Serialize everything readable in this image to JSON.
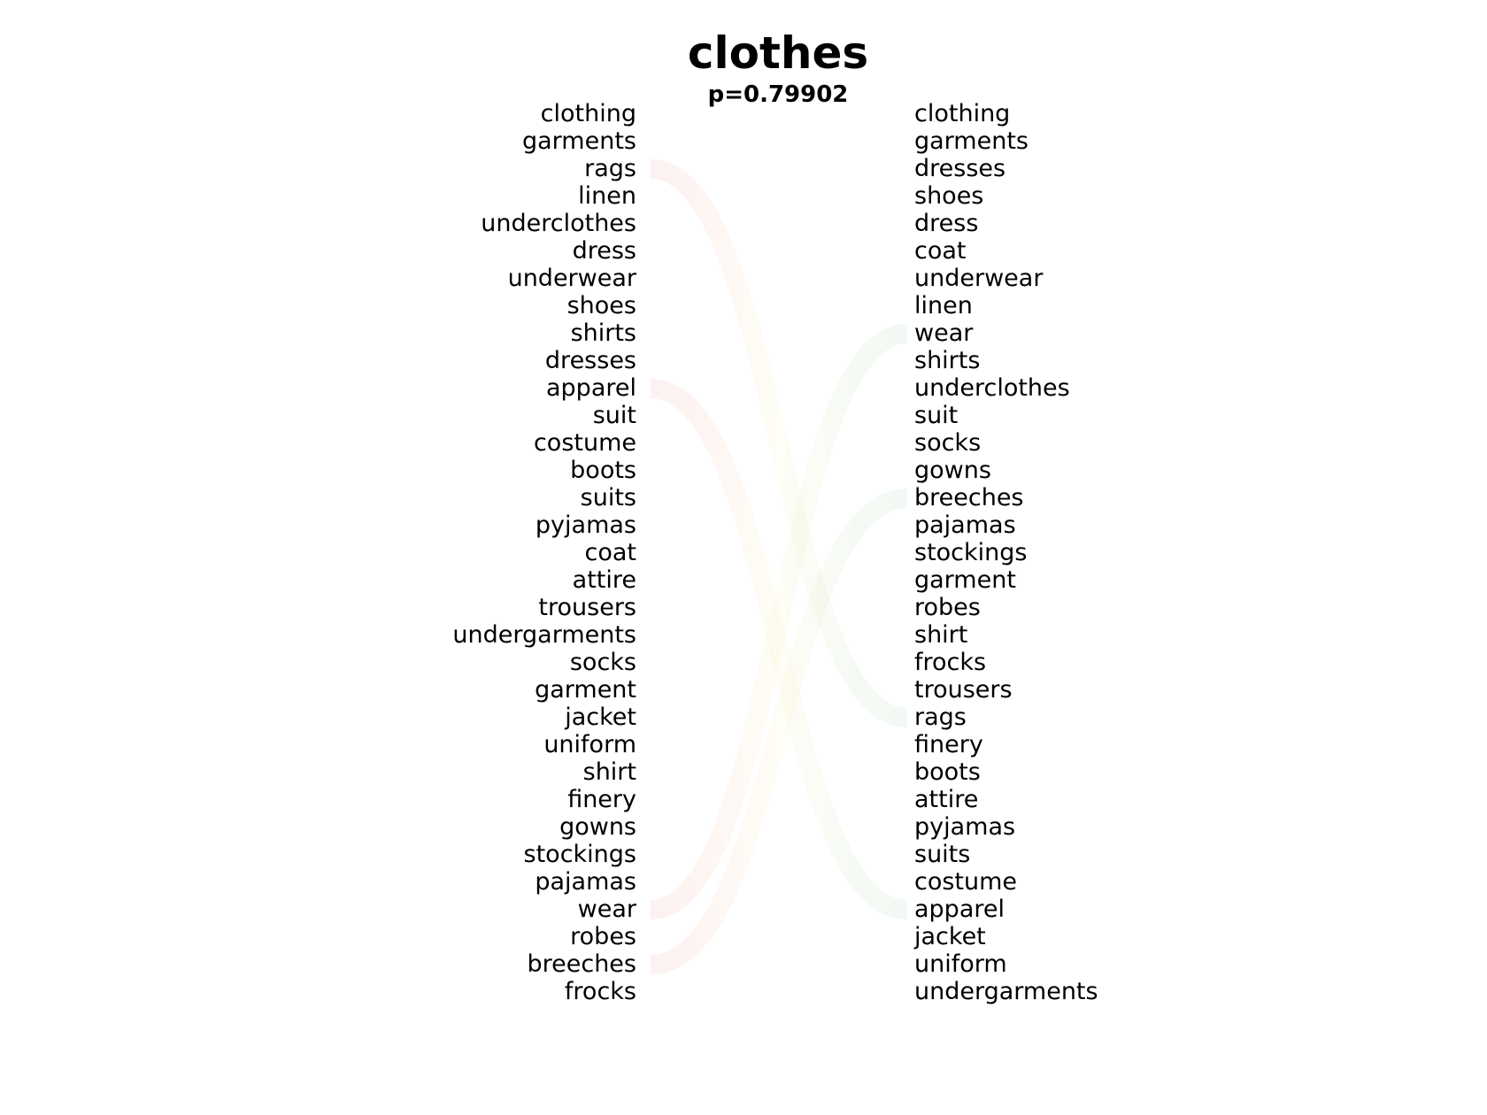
{
  "title": "clothes",
  "subtitle": "p=0.79902",
  "left_words": [
    "clothing",
    "garments",
    "rags",
    "linen",
    "underclothes",
    "dress",
    "underwear",
    "shoes",
    "shirts",
    "dresses",
    "apparel",
    "suit",
    "costume",
    "boots",
    "suits",
    "pyjamas",
    "coat",
    "attire",
    "trousers",
    "undergarments",
    "socks",
    "garment",
    "jacket",
    "uniform",
    "shirt",
    "finery",
    "gowns",
    "stockings",
    "pajamas",
    "wear",
    "robes",
    "breeches",
    "frocks"
  ],
  "right_words": [
    "clothing",
    "garments",
    "dresses",
    "shoes",
    "dress",
    "coat",
    "underwear",
    "linen",
    "wear",
    "shirts",
    "underclothes",
    "suit",
    "socks",
    "gowns",
    "breeches",
    "pajamas",
    "stockings",
    "garment",
    "robes",
    "shirt",
    "frocks",
    "trousers",
    "rags",
    "finery",
    "boots",
    "attire",
    "pyjamas",
    "suits",
    "costume",
    "apparel",
    "jacket",
    "uniform",
    "undergarments"
  ],
  "links": [
    {
      "word": "rags",
      "left_rank": 3,
      "right_rank": 23
    },
    {
      "word": "apparel",
      "left_rank": 11,
      "right_rank": 30
    },
    {
      "word": "wear",
      "left_rank": 30,
      "right_rank": 9
    },
    {
      "word": "breeches",
      "left_rank": 32,
      "right_rank": 15
    }
  ],
  "colors": {
    "left_side": "#e0343c",
    "right_side": "#3aa867",
    "text": "#000000"
  }
}
